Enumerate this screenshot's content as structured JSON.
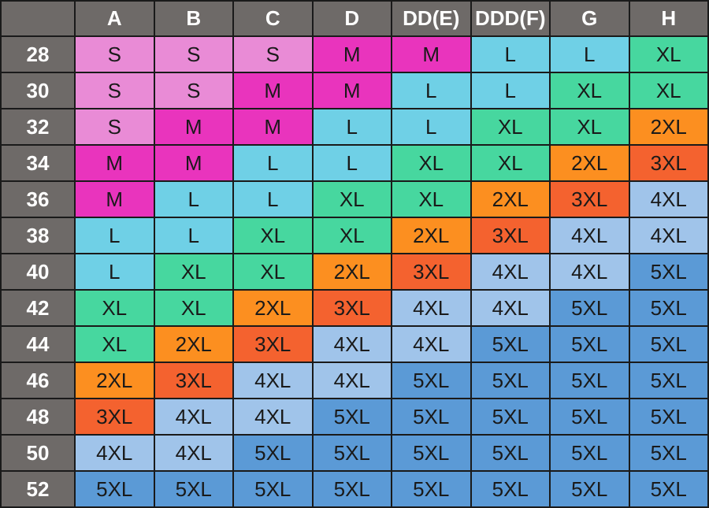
{
  "chart_data": {
    "type": "table",
    "columns": [
      "A",
      "B",
      "C",
      "D",
      "DD(E)",
      "DDD(F)",
      "G",
      "H"
    ],
    "rows": [
      {
        "band": "28",
        "sizes": [
          "S",
          "S",
          "S",
          "M",
          "M",
          "L",
          "L",
          "XL"
        ]
      },
      {
        "band": "30",
        "sizes": [
          "S",
          "S",
          "M",
          "M",
          "L",
          "L",
          "XL",
          "XL"
        ]
      },
      {
        "band": "32",
        "sizes": [
          "S",
          "M",
          "M",
          "L",
          "L",
          "XL",
          "XL",
          "2XL"
        ]
      },
      {
        "band": "34",
        "sizes": [
          "M",
          "M",
          "L",
          "L",
          "XL",
          "XL",
          "2XL",
          "3XL"
        ]
      },
      {
        "band": "36",
        "sizes": [
          "M",
          "L",
          "L",
          "XL",
          "XL",
          "2XL",
          "3XL",
          "4XL"
        ]
      },
      {
        "band": "38",
        "sizes": [
          "L",
          "L",
          "XL",
          "XL",
          "2XL",
          "3XL",
          "4XL",
          "4XL"
        ]
      },
      {
        "band": "40",
        "sizes": [
          "L",
          "XL",
          "XL",
          "2XL",
          "3XL",
          "4XL",
          "4XL",
          "5XL"
        ]
      },
      {
        "band": "42",
        "sizes": [
          "XL",
          "XL",
          "2XL",
          "3XL",
          "4XL",
          "4XL",
          "5XL",
          "5XL"
        ]
      },
      {
        "band": "44",
        "sizes": [
          "XL",
          "2XL",
          "3XL",
          "4XL",
          "4XL",
          "5XL",
          "5XL",
          "5XL"
        ]
      },
      {
        "band": "46",
        "sizes": [
          "2XL",
          "3XL",
          "4XL",
          "4XL",
          "5XL",
          "5XL",
          "5XL",
          "5XL"
        ]
      },
      {
        "band": "48",
        "sizes": [
          "3XL",
          "4XL",
          "4XL",
          "5XL",
          "5XL",
          "5XL",
          "5XL",
          "5XL"
        ]
      },
      {
        "band": "50",
        "sizes": [
          "4XL",
          "4XL",
          "5XL",
          "5XL",
          "5XL",
          "5XL",
          "5XL",
          "5XL"
        ]
      },
      {
        "band": "52",
        "sizes": [
          "5XL",
          "5XL",
          "5XL",
          "5XL",
          "5XL",
          "5XL",
          "5XL",
          "5XL"
        ]
      }
    ],
    "size_colors": {
      "S": "#e98bd6",
      "M": "#e934bd",
      "L": "#6fd0e6",
      "XL": "#47d79f",
      "2XL": "#fc8f20",
      "3XL": "#f4622f",
      "4XL": "#a0c4ea",
      "5XL": "#5b9ad6"
    },
    "header_color": "#6e6a68"
  }
}
